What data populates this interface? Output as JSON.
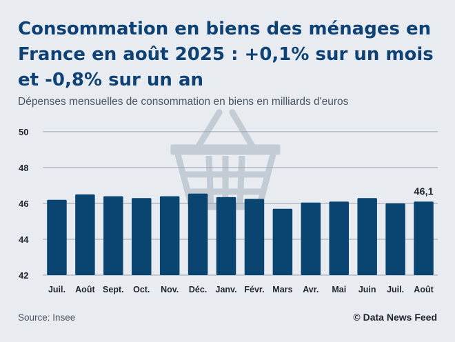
{
  "header": {
    "title": "Consommation en biens des ménages en France en août 2025 : +0,1% sur un mois et -0,8% sur un an",
    "subtitle": "Dépenses mensuelles de consommation en biens en milliards d'euros"
  },
  "footer": {
    "source": "Source: Insee",
    "credit": "© Data News Feed"
  },
  "colors": {
    "bar": "#0a4470",
    "grid": "#9aa3ad",
    "background": "#e8ebef",
    "title": "#0e4275",
    "watermark": "#c3cbd4"
  },
  "watermark_icon": "shopping-basket-icon",
  "chart_data": {
    "type": "bar",
    "title": "",
    "xlabel": "",
    "ylabel": "",
    "categories": [
      "Juil.",
      "Août",
      "Sept.",
      "Oct.",
      "Nov.",
      "Déc.",
      "Janv.",
      "Févr.",
      "Mars",
      "Avr.",
      "Mai",
      "Juin",
      "Juil.",
      "Août"
    ],
    "values": [
      46.2,
      46.5,
      46.4,
      46.3,
      46.4,
      46.55,
      46.35,
      46.25,
      45.7,
      46.05,
      46.1,
      46.3,
      46.0,
      46.1
    ],
    "ylim": [
      42,
      50
    ],
    "yticks": [
      "42",
      "44",
      "46",
      "48",
      "50"
    ],
    "data_labels": [
      {
        "index": 13,
        "text": "46,1"
      }
    ],
    "grid": true
  }
}
